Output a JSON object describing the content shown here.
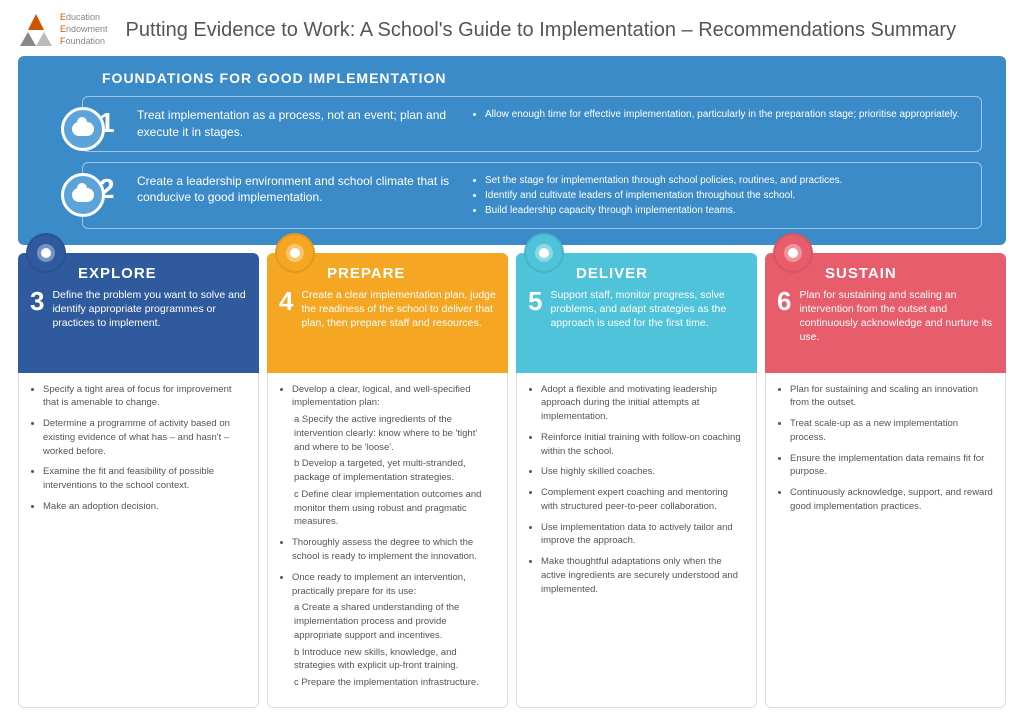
{
  "logo": {
    "l1a": "E",
    "l1b": "ducation",
    "l2a": "E",
    "l2b": "ndowment",
    "l3a": "F",
    "l3b": "oundation"
  },
  "title": "Putting Evidence to Work: A School's Guide to Implementation – Recommendations Summary",
  "foundations": {
    "heading": "FOUNDATIONS FOR GOOD IMPLEMENTATION",
    "rows": [
      {
        "num": "1",
        "desc": "Treat implementation as a process, not an event; plan and execute it in stages.",
        "bullets": [
          "Allow enough time for effective implementation, particularly in the preparation stage; prioritise appropriately."
        ]
      },
      {
        "num": "2",
        "desc": "Create a leadership environment and school climate that is conducive to good implementation.",
        "bullets": [
          "Set the stage for implementation through school policies, routines, and practices.",
          "Identify and cultivate leaders of implementation throughout the school.",
          "Build leadership capacity through implementation teams."
        ]
      }
    ]
  },
  "stages": [
    {
      "key": "explore",
      "title": "EXPLORE",
      "num": "3",
      "desc": "Define the problem you want to solve and identify appropriate programmes or practices to implement.",
      "icon_bg": "#2f5a9e",
      "bullets": [
        "Specify a tight area of focus for improvement that is amenable to change.",
        "Determine a programme of activity based on existing evidence of what has – and hasn't – worked before.",
        "Examine the fit and feasibility of possible interventions to the school context.",
        "Make an adoption decision."
      ]
    },
    {
      "key": "prepare",
      "title": "PREPARE",
      "num": "4",
      "desc": "Create a clear implementation plan, judge the readiness of the school to deliver that plan, then prepare staff and resources.",
      "icon_bg": "#f5a623",
      "bullets_struct": [
        {
          "t": "Develop a clear, logical, and well-specified implementation plan:",
          "sub": [
            "a   Specify the active ingredients of the intervention clearly: know where to be 'tight' and where to be 'loose'.",
            "b   Develop a targeted, yet multi-stranded, package of implementation strategies.",
            "c   Define clear implementation outcomes and monitor them using robust and pragmatic measures."
          ]
        },
        {
          "t": "Thoroughly assess the degree to which the school is ready to implement the innovation."
        },
        {
          "t": "Once ready to implement an intervention, practically prepare for its use:",
          "sub": [
            "a   Create a shared understanding of the implementation process and provide appropriate support and incentives.",
            "b   Introduce new skills, knowledge, and strategies with explicit up-front training.",
            "c   Prepare the implementation infrastructure."
          ]
        }
      ]
    },
    {
      "key": "deliver",
      "title": "DELIVER",
      "num": "5",
      "desc": "Support staff, monitor progress, solve problems, and adapt strategies as the approach is used for the first time.",
      "icon_bg": "#4fc3d9",
      "bullets": [
        "Adopt a flexible and motivating leadership approach during the initial attempts at implementation.",
        "Reinforce initial training with follow-on coaching within the school.",
        "Use highly skilled coaches.",
        "Complement expert coaching and mentoring with structured peer-to-peer collaboration.",
        "Use implementation data to actively tailor and improve the approach.",
        "Make thoughtful adaptations only when the active ingredients are securely understood and implemented."
      ]
    },
    {
      "key": "sustain",
      "title": "SUSTAIN",
      "num": "6",
      "desc": "Plan for sustaining and scaling an intervention from the outset and continuously acknowledge and nurture its use.",
      "icon_bg": "#e85d6b",
      "bullets": [
        "Plan for sustaining and scaling an innovation from the outset.",
        "Treat scale-up as a new implementation process.",
        "Ensure the implementation data remains fit for purpose.",
        "Continuously acknowledge, support, and reward good implementation practices."
      ]
    }
  ]
}
